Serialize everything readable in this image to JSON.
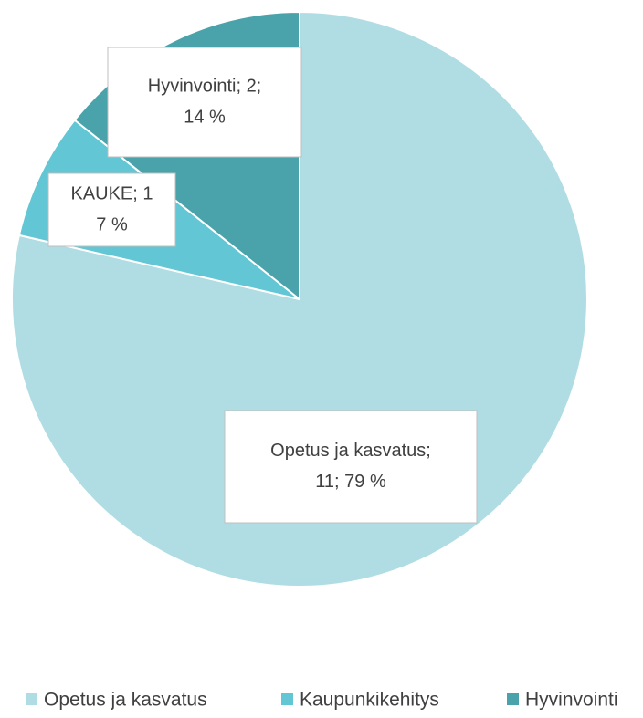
{
  "chart_data": {
    "type": "pie",
    "categories": [
      "Opetus ja kasvatus",
      "Kaupunkikehitys",
      "Hyvinvointi"
    ],
    "values": [
      11,
      1,
      2
    ],
    "value_labels": [
      [
        "Opetus ja kasvatus;",
        "11; 79 %"
      ],
      [
        "KAUKE; 1",
        "7 %"
      ],
      [
        "Hyvinvointi; 2;",
        "14 %"
      ]
    ],
    "colors": [
      "#b0dde3",
      "#62c6d4",
      "#4aa3ab"
    ],
    "legend": "bottom"
  }
}
